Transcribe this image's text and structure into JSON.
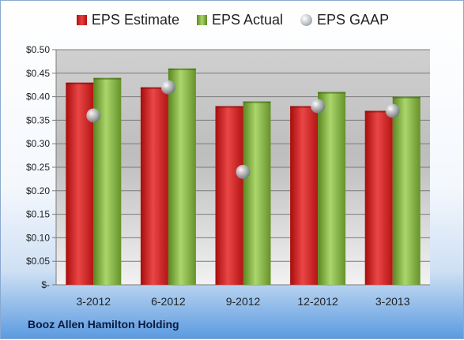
{
  "company": "Booz Allen Hamilton Holding",
  "legend": {
    "estimate": "EPS Estimate",
    "actual": "EPS Actual",
    "gaap": "EPS GAAP"
  },
  "colors": {
    "estimate": "#d42020",
    "actual": "#8cbc48",
    "gaap": "#b0b5bc"
  },
  "chart_data": {
    "type": "bar",
    "categories": [
      "3-2012",
      "6-2012",
      "9-2012",
      "12-2012",
      "3-2013"
    ],
    "series": [
      {
        "name": "EPS Estimate",
        "values": [
          0.43,
          0.42,
          0.38,
          0.38,
          0.37
        ]
      },
      {
        "name": "EPS Actual",
        "values": [
          0.44,
          0.46,
          0.39,
          0.41,
          0.4
        ]
      },
      {
        "name": "EPS GAAP",
        "values": [
          0.36,
          0.42,
          0.24,
          0.38,
          0.37
        ]
      }
    ],
    "ylim": [
      0,
      0.5
    ],
    "yticks": [
      0,
      0.05,
      0.1,
      0.15,
      0.2,
      0.25,
      0.3,
      0.35,
      0.4,
      0.45,
      0.5
    ],
    "ytick_labels": [
      "$-",
      "$0.05",
      "$0.10",
      "$0.15",
      "$0.20",
      "$0.25",
      "$0.30",
      "$0.35",
      "$0.40",
      "$0.45",
      "$0.50"
    ],
    "legend_position": "top",
    "grid": true
  }
}
